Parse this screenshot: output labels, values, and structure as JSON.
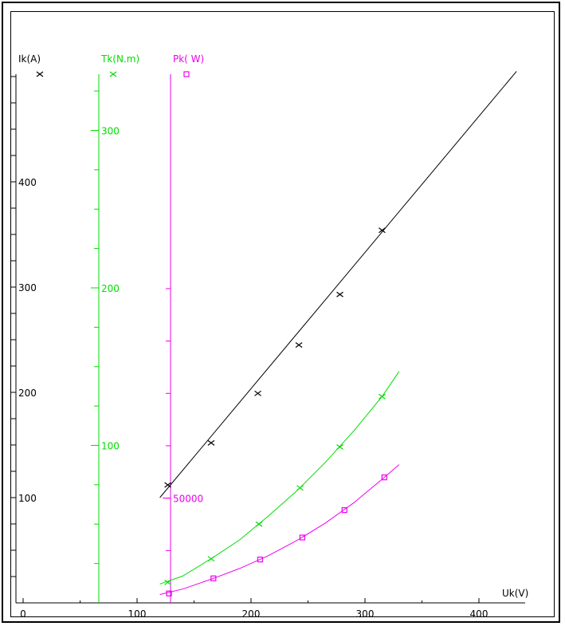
{
  "chart_data": {
    "type": "scatter",
    "x_axis": {
      "label": "Uk(V)",
      "range": [
        0,
        450
      ],
      "ticks": [
        0,
        100,
        200,
        300,
        400
      ]
    },
    "y_axes": [
      {
        "label": "Ik(A)",
        "color": "#000000",
        "range": [
          0,
          500
        ],
        "ticks": [
          100,
          200,
          300,
          400
        ],
        "tick_labels": [
          "100",
          "200",
          "300",
          "400"
        ]
      },
      {
        "label": "Tk(N.m)",
        "color": "#00dd00",
        "range": [
          0,
          350
        ],
        "ticks": [
          100,
          200,
          300
        ],
        "tick_labels": [
          "100",
          "200",
          "300"
        ]
      },
      {
        "label": "Pk( W)",
        "color": "#ee00ee",
        "range": [
          0,
          150000
        ],
        "ticks": [
          50000
        ],
        "tick_labels": [
          "50000"
        ]
      }
    ],
    "series": [
      {
        "axis": 0,
        "marker": "x",
        "color": "#000000",
        "points": [
          [
            127,
            112
          ],
          [
            165,
            152
          ],
          [
            206,
            199
          ],
          [
            242,
            245
          ],
          [
            278,
            293
          ],
          [
            315,
            354
          ]
        ],
        "curve": [
          [
            120,
            100
          ],
          [
            433,
            505
          ]
        ]
      },
      {
        "axis": 1,
        "marker": "x",
        "color": "#00dd00",
        "points": [
          [
            127,
            13
          ],
          [
            165,
            28
          ],
          [
            207,
            50
          ],
          [
            243,
            73
          ],
          [
            278,
            99
          ],
          [
            315,
            131
          ]
        ],
        "curve": [
          [
            120,
            12
          ],
          [
            140,
            17
          ],
          [
            165,
            28
          ],
          [
            190,
            40
          ],
          [
            215,
            55
          ],
          [
            240,
            71
          ],
          [
            265,
            89
          ],
          [
            290,
            109
          ],
          [
            315,
            131
          ],
          [
            330,
            147
          ]
        ]
      },
      {
        "axis": 2,
        "marker": "square",
        "color": "#ee00ee",
        "points": [
          [
            128,
            4500
          ],
          [
            167,
            11700
          ],
          [
            208,
            20700
          ],
          [
            245,
            31200
          ],
          [
            282,
            44300
          ],
          [
            317,
            59900
          ]
        ],
        "curve": [
          [
            120,
            4000
          ],
          [
            140,
            6600
          ],
          [
            167,
            11700
          ],
          [
            190,
            16400
          ],
          [
            215,
            22500
          ],
          [
            240,
            29700
          ],
          [
            265,
            38000
          ],
          [
            290,
            47700
          ],
          [
            317,
            59900
          ],
          [
            330,
            66000
          ]
        ]
      }
    ]
  }
}
